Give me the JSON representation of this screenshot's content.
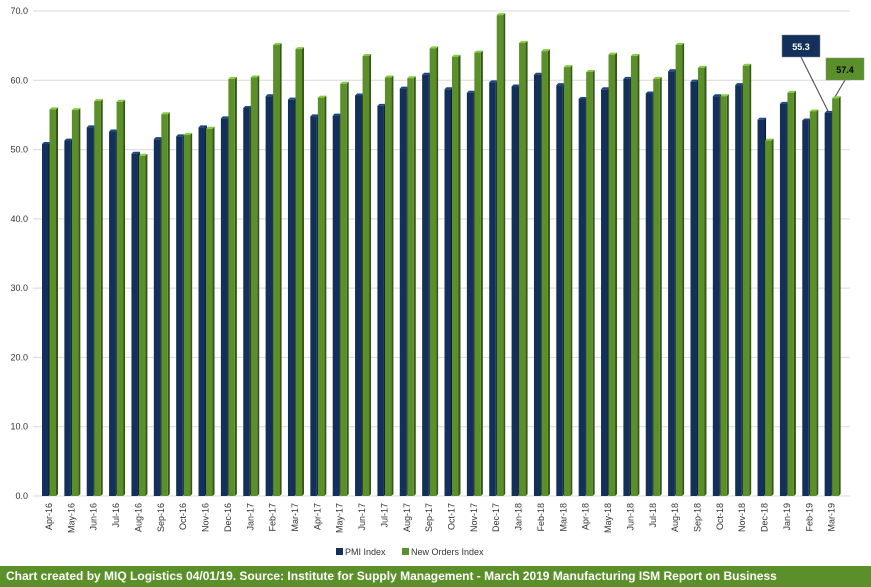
{
  "chart_data": {
    "type": "bar",
    "categories": [
      "Apr-16",
      "May-16",
      "Jun-16",
      "Jul-16",
      "Aug-16",
      "Sep-16",
      "Oct-16",
      "Nov-16",
      "Dec-16",
      "Jan-17",
      "Feb-17",
      "Mar-17",
      "Apr-17",
      "May-17",
      "Jun-17",
      "Jul-17",
      "Aug-17",
      "Sep-17",
      "Oct-17",
      "Nov-17",
      "Dec-17",
      "Jan-18",
      "Feb-18",
      "Mar-18",
      "Apr-18",
      "May-18",
      "Jun-18",
      "Jul-18",
      "Aug-18",
      "Sep-18",
      "Oct-18",
      "Nov-18",
      "Dec-18",
      "Jan-19",
      "Feb-19",
      "Mar-19"
    ],
    "series": [
      {
        "name": "PMI Index",
        "color": "#12305a",
        "values": [
          50.8,
          51.3,
          53.2,
          52.6,
          49.4,
          51.5,
          51.9,
          53.2,
          54.5,
          56.0,
          57.7,
          57.2,
          54.8,
          54.9,
          57.8,
          56.3,
          58.8,
          60.8,
          58.7,
          58.2,
          59.7,
          59.1,
          60.8,
          59.3,
          57.3,
          58.7,
          60.2,
          58.1,
          61.3,
          59.8,
          57.7,
          59.3,
          54.3,
          56.6,
          54.2,
          55.3
        ]
      },
      {
        "name": "New Orders Index",
        "color": "#5b8f2a",
        "values": [
          55.8,
          55.7,
          57.0,
          56.9,
          49.1,
          55.1,
          52.1,
          53.0,
          60.2,
          60.4,
          65.1,
          64.5,
          57.5,
          59.5,
          63.5,
          60.4,
          60.3,
          64.6,
          63.4,
          64.0,
          69.4,
          65.4,
          64.2,
          61.9,
          61.2,
          63.7,
          63.5,
          60.2,
          65.1,
          61.8,
          57.7,
          62.1,
          51.3,
          58.2,
          55.5,
          57.4
        ]
      }
    ],
    "xlabel": "",
    "ylabel": "",
    "ylim": [
      0,
      70
    ],
    "yticks": [
      "0.0",
      "10.0",
      "20.0",
      "30.0",
      "40.0",
      "50.0",
      "60.0",
      "70.0"
    ],
    "grid": true,
    "legend_position": "bottom",
    "callouts": [
      {
        "label": "55.3",
        "series": 0,
        "index": 35,
        "color": "#12305a"
      },
      {
        "label": "57.4",
        "series": 1,
        "index": 35,
        "color": "#5b8f2a"
      }
    ]
  },
  "footer": {
    "text": "Chart created by MIQ Logistics 04/01/19. Source: Institute for Supply Management - March 2019 Manufacturing ISM Report on Business"
  }
}
